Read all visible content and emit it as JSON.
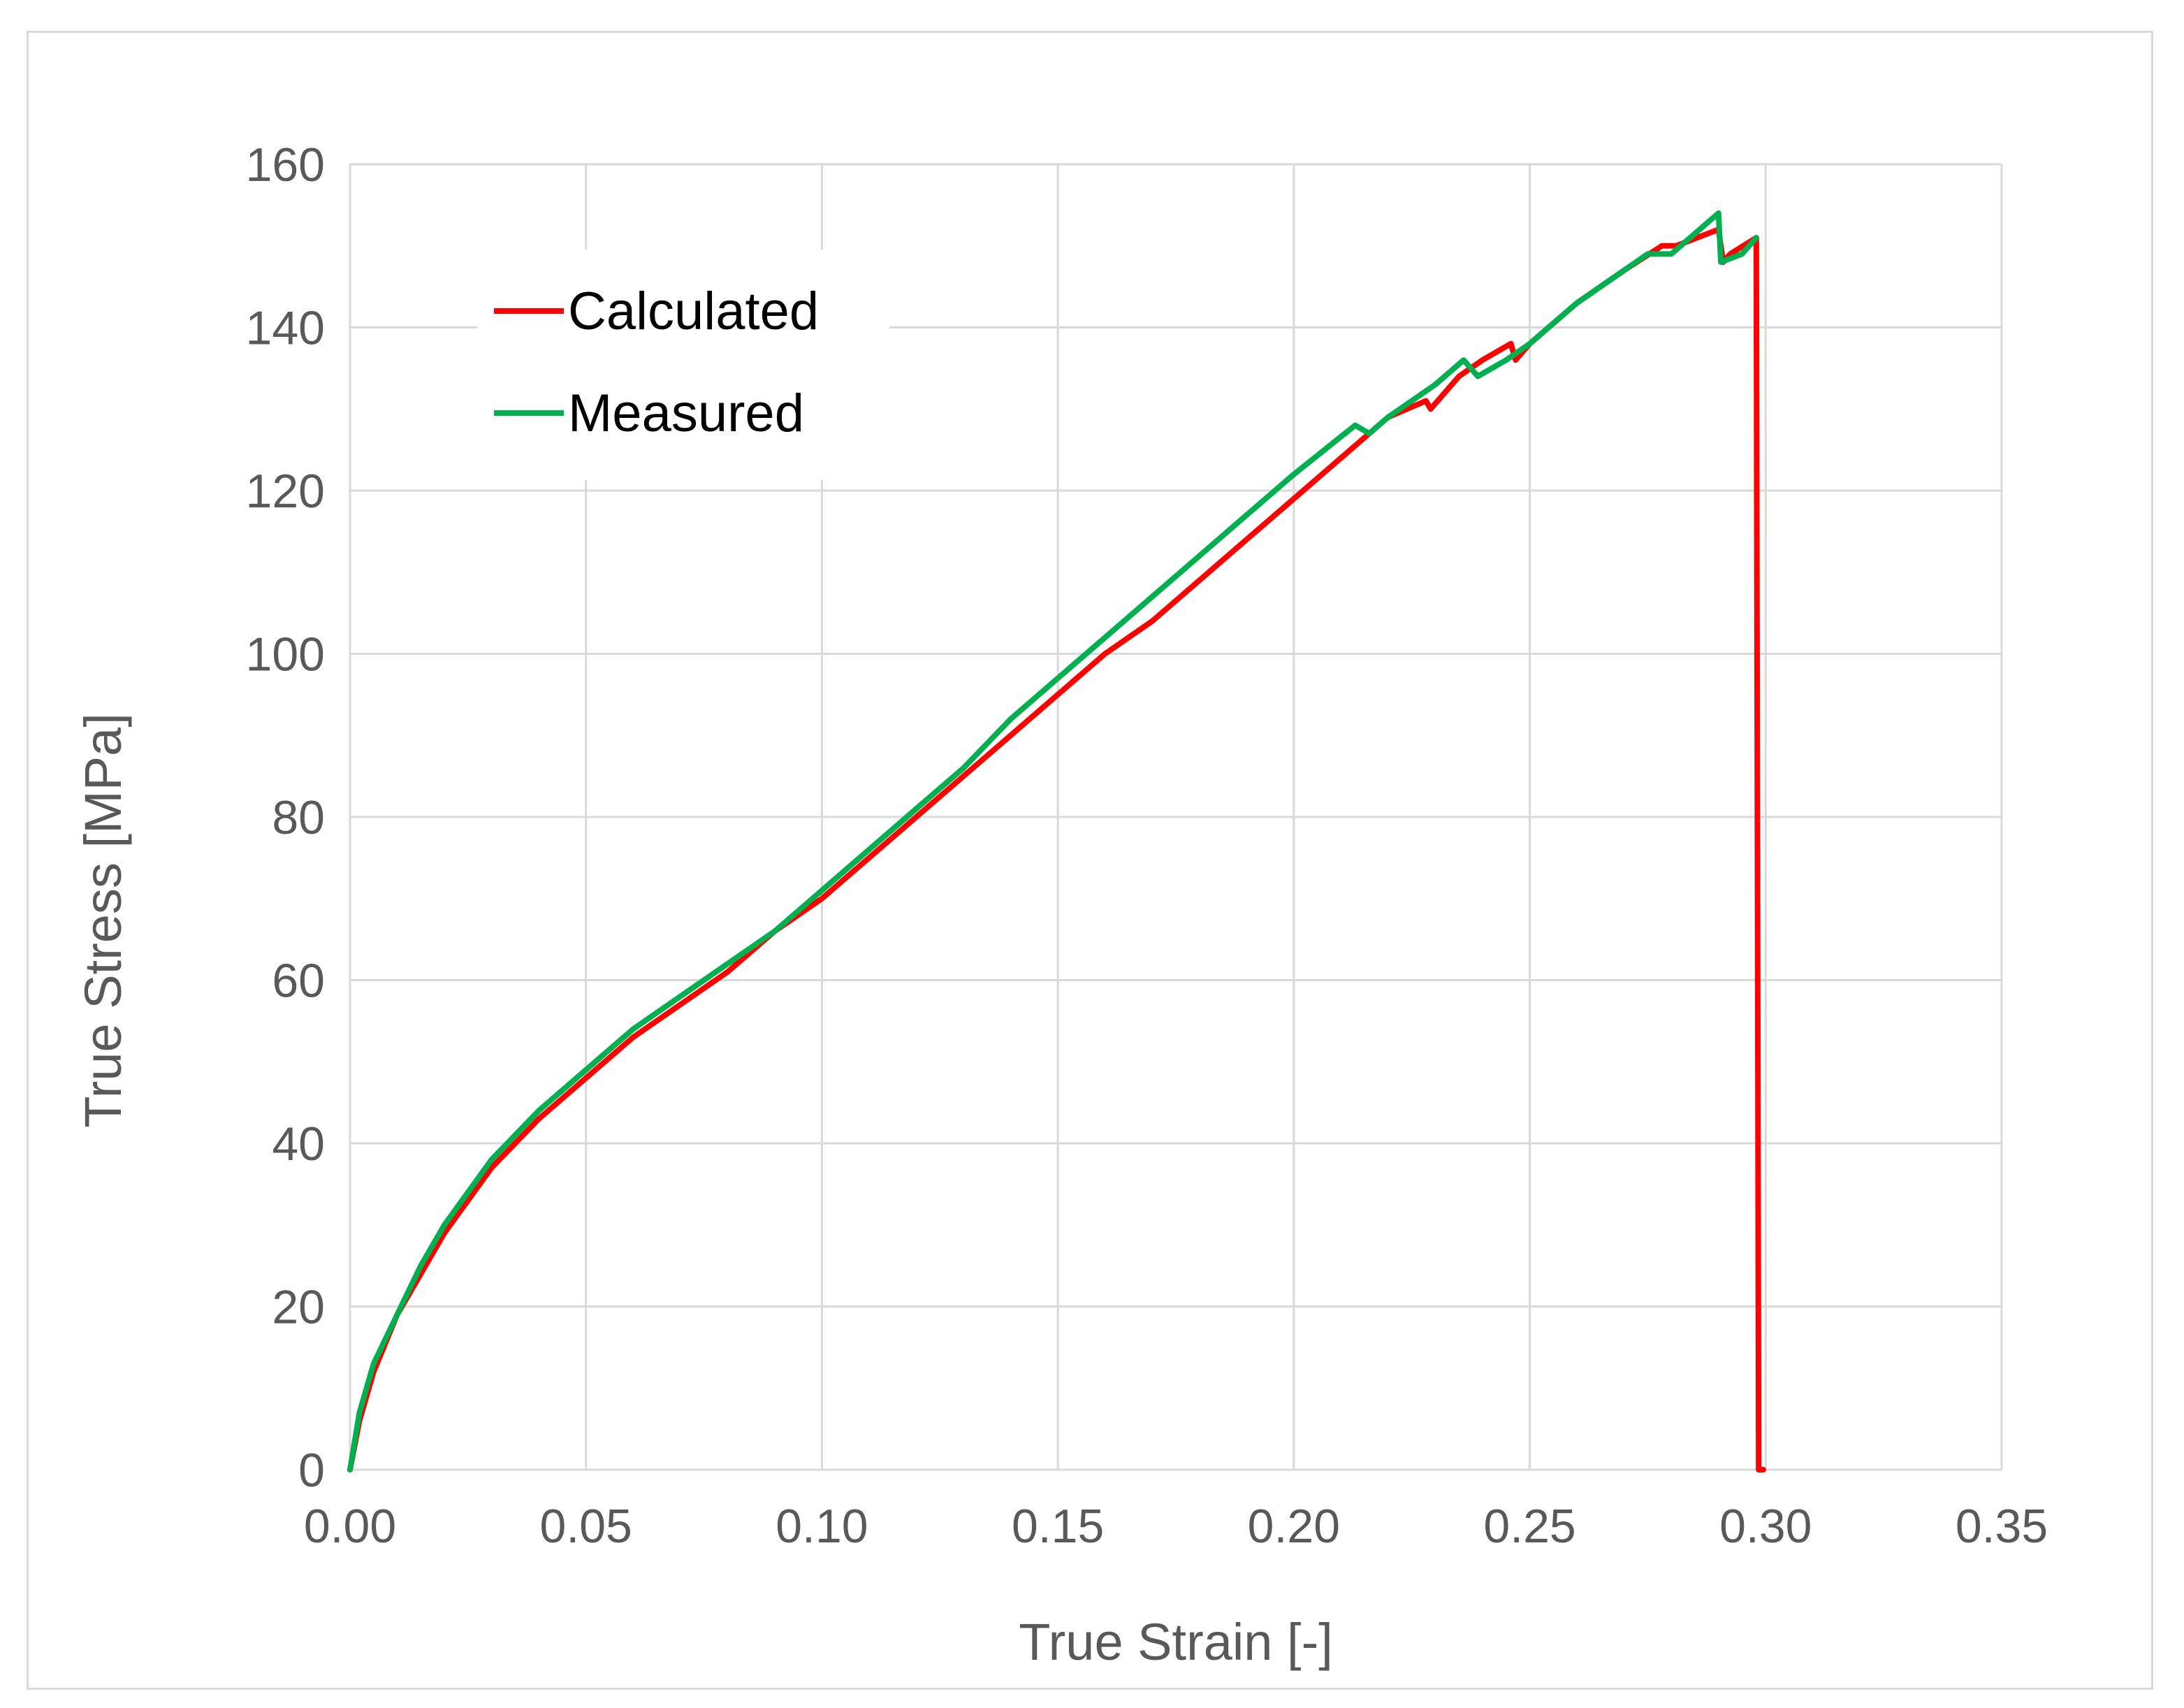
{
  "chart_data": {
    "type": "line",
    "title": "",
    "xlabel": "True Strain [-]",
    "ylabel": "True Stress [MPa]",
    "xlim": [
      0,
      0.35
    ],
    "ylim": [
      0,
      160
    ],
    "x_ticks": [
      "0.00",
      "0.05",
      "0.10",
      "0.15",
      "0.20",
      "0.25",
      "0.30",
      "0.35"
    ],
    "y_ticks": [
      "0",
      "20",
      "40",
      "60",
      "80",
      "100",
      "120",
      "140",
      "160"
    ],
    "grid": true,
    "legend_position": "top-left",
    "series": [
      {
        "name": "Calculated",
        "color": "#ff0000",
        "x": [
          0.0,
          0.002,
          0.005,
          0.01,
          0.015,
          0.02,
          0.03,
          0.04,
          0.05,
          0.06,
          0.07,
          0.08,
          0.09,
          0.1,
          0.11,
          0.12,
          0.13,
          0.14,
          0.15,
          0.16,
          0.17,
          0.18,
          0.19,
          0.2,
          0.21,
          0.22,
          0.228,
          0.229,
          0.235,
          0.24,
          0.246,
          0.247,
          0.25,
          0.26,
          0.27,
          0.278,
          0.281,
          0.29,
          0.291,
          0.2925,
          0.298,
          0.2985,
          0.2995
        ],
        "y": [
          0,
          6,
          12,
          19,
          24,
          29,
          37,
          43,
          48,
          53,
          57,
          61,
          66,
          70,
          75,
          80,
          85,
          90,
          95,
          100,
          104,
          109,
          114,
          119,
          124,
          129,
          131,
          130,
          134,
          136,
          138,
          136,
          138,
          143,
          147,
          150,
          150,
          152,
          148,
          149,
          151,
          0,
          0
        ]
      },
      {
        "name": "Measured",
        "color": "#00b050",
        "x": [
          0.0,
          0.002,
          0.005,
          0.01,
          0.015,
          0.02,
          0.03,
          0.04,
          0.05,
          0.06,
          0.07,
          0.08,
          0.09,
          0.1,
          0.11,
          0.12,
          0.13,
          0.14,
          0.15,
          0.16,
          0.17,
          0.18,
          0.19,
          0.2,
          0.213,
          0.216,
          0.22,
          0.23,
          0.236,
          0.239,
          0.245,
          0.25,
          0.26,
          0.27,
          0.275,
          0.28,
          0.29,
          0.2905,
          0.295,
          0.298
        ],
        "y": [
          0,
          7,
          13,
          19,
          25,
          30,
          38,
          44,
          49,
          54,
          58,
          62,
          66,
          71,
          76,
          81,
          86,
          92,
          97,
          102,
          107,
          112,
          117,
          122,
          128,
          127,
          129,
          133,
          136,
          134,
          136,
          138,
          143,
          147,
          149,
          149,
          154,
          148,
          149,
          151
        ]
      }
    ]
  }
}
